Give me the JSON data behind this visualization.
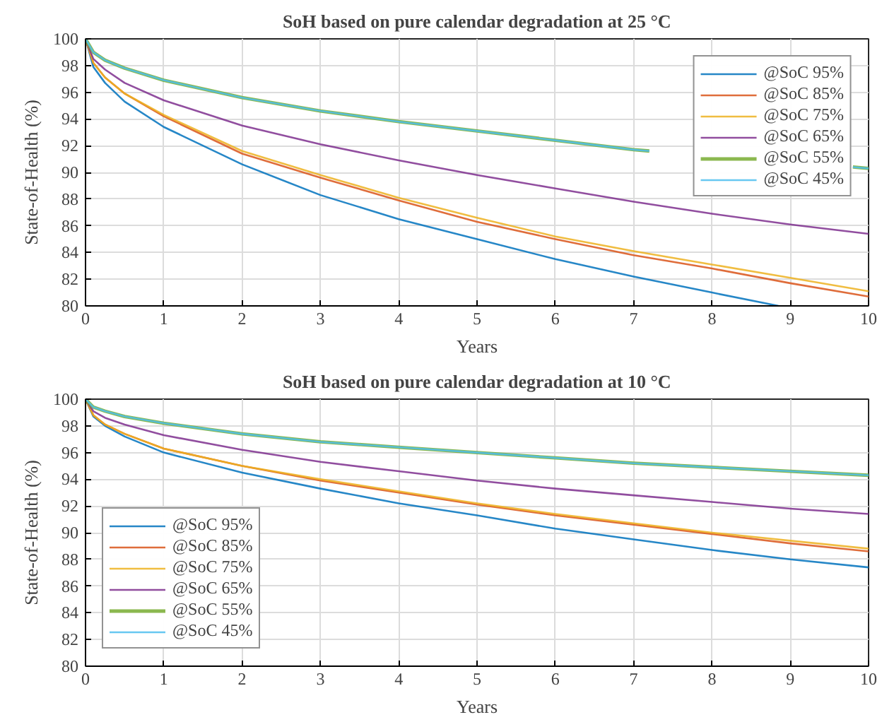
{
  "chart_data": [
    {
      "type": "line",
      "title": "SoH based on pure calendar degradation at 25 °C",
      "xlabel": "Years",
      "ylabel": "State-of-Health (%)",
      "xlim": [
        0,
        10
      ],
      "ylim": [
        80,
        100
      ],
      "xticks": [
        0,
        1,
        2,
        3,
        4,
        5,
        6,
        7,
        8,
        9,
        10
      ],
      "yticks": [
        80,
        82,
        84,
        86,
        88,
        90,
        92,
        94,
        96,
        98,
        100
      ],
      "grid": true,
      "legend": "top right",
      "x": [
        0,
        0.1,
        0.25,
        0.5,
        1,
        2,
        3,
        4,
        5,
        6,
        7,
        8,
        9,
        10
      ],
      "series": [
        {
          "name": "@SoC 95%",
          "color": "#0072bd",
          "x": [
            0,
            0.1,
            0.25,
            0.5,
            1,
            2,
            3,
            4,
            5,
            6,
            7,
            8,
            8.85
          ],
          "values": [
            100,
            97.9,
            96.7,
            95.3,
            93.4,
            90.6,
            88.3,
            86.5,
            85.0,
            83.5,
            82.2,
            81.0,
            80
          ]
        },
        {
          "name": "@SoC 85%",
          "color": "#d95319",
          "values": [
            100,
            98.2,
            97.1,
            95.9,
            94.2,
            91.4,
            89.6,
            87.9,
            86.3,
            85.0,
            83.8,
            82.8,
            81.7,
            80.7
          ]
        },
        {
          "name": "@SoC 75%",
          "color": "#edb120",
          "values": [
            100,
            98.2,
            97.1,
            95.9,
            94.3,
            91.6,
            89.8,
            88.1,
            86.6,
            85.2,
            84.1,
            83.1,
            82.1,
            81.1
          ]
        },
        {
          "name": "@SoC 65%",
          "color": "#7e2f8e",
          "values": [
            100,
            98.5,
            97.7,
            96.7,
            95.4,
            93.5,
            92.1,
            90.9,
            89.8,
            88.8,
            87.8,
            86.9,
            86.1,
            85.4
          ]
        },
        {
          "name": "@SoC 55%",
          "color": "#77ac30",
          "x": [
            0,
            0.1,
            0.25,
            0.5,
            1,
            2,
            3,
            4,
            5,
            6,
            7,
            7.2,
            8,
            9.8,
            10
          ],
          "values": [
            100,
            99.0,
            98.4,
            97.8,
            96.9,
            95.6,
            94.6,
            93.8,
            93.1,
            92.4,
            91.7,
            91.6,
            null,
            90.4,
            90.3
          ]
        },
        {
          "name": "@SoC 45%",
          "color": "#4dbeee",
          "x": [
            0,
            0.1,
            0.25,
            0.5,
            1,
            2,
            3,
            4,
            5,
            6,
            7,
            7.2,
            8,
            9.8,
            10
          ],
          "values": [
            100,
            99.0,
            98.4,
            97.8,
            96.9,
            95.6,
            94.6,
            93.8,
            93.1,
            92.4,
            91.7,
            91.6,
            null,
            90.4,
            90.3
          ]
        }
      ]
    },
    {
      "type": "line",
      "title": "SoH based on pure calendar degradation at 10 °C",
      "xlabel": "Years",
      "ylabel": "State-of-Health (%)",
      "xlim": [
        0,
        10
      ],
      "ylim": [
        80,
        100
      ],
      "xticks": [
        0,
        1,
        2,
        3,
        4,
        5,
        6,
        7,
        8,
        9,
        10
      ],
      "yticks": [
        80,
        82,
        84,
        86,
        88,
        90,
        92,
        94,
        96,
        98,
        100
      ],
      "grid": true,
      "legend": "bottom left",
      "x": [
        0,
        0.1,
        0.25,
        0.5,
        1,
        2,
        3,
        4,
        5,
        6,
        7,
        8,
        9,
        10
      ],
      "series": [
        {
          "name": "@SoC 95%",
          "color": "#0072bd",
          "values": [
            100,
            98.7,
            98.0,
            97.2,
            96.0,
            94.5,
            93.3,
            92.2,
            91.3,
            90.3,
            89.5,
            88.7,
            88.0,
            87.4
          ]
        },
        {
          "name": "@SoC 85%",
          "color": "#d95319",
          "values": [
            100,
            98.8,
            98.1,
            97.4,
            96.3,
            95.0,
            93.9,
            93.0,
            92.1,
            91.3,
            90.6,
            89.9,
            89.2,
            88.6
          ]
        },
        {
          "name": "@SoC 75%",
          "color": "#edb120",
          "values": [
            100,
            98.8,
            98.1,
            97.4,
            96.3,
            95.0,
            94.0,
            93.1,
            92.2,
            91.4,
            90.7,
            90.0,
            89.4,
            88.8
          ]
        },
        {
          "name": "@SoC 65%",
          "color": "#7e2f8e",
          "values": [
            100,
            99.1,
            98.6,
            98.1,
            97.3,
            96.2,
            95.3,
            94.6,
            93.9,
            93.3,
            92.8,
            92.3,
            91.8,
            91.4
          ]
        },
        {
          "name": "@SoC 55%",
          "color": "#77ac30",
          "values": [
            100,
            99.4,
            99.1,
            98.7,
            98.2,
            97.4,
            96.8,
            96.4,
            96.0,
            95.6,
            95.2,
            94.9,
            94.6,
            94.3
          ]
        },
        {
          "name": "@SoC 45%",
          "color": "#4dbeee",
          "values": [
            100,
            99.4,
            99.1,
            98.7,
            98.2,
            97.4,
            96.8,
            96.4,
            96.0,
            95.6,
            95.2,
            94.9,
            94.6,
            94.3
          ]
        }
      ]
    }
  ]
}
